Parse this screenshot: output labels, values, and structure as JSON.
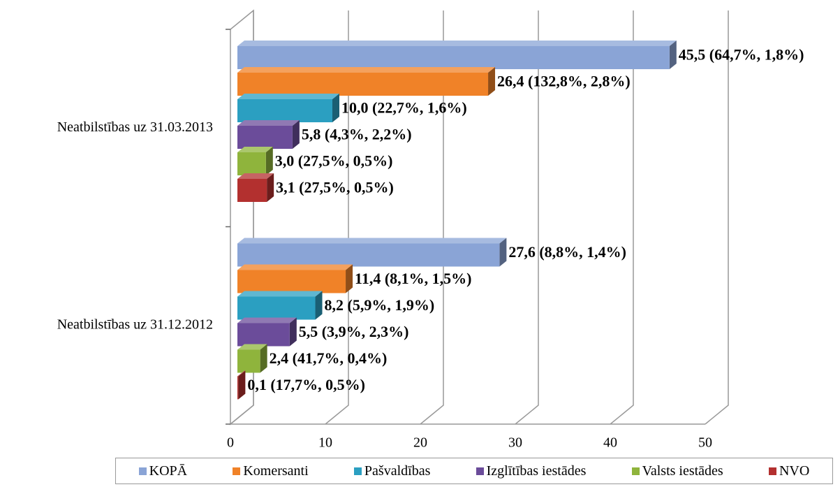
{
  "chart_data": {
    "type": "bar3d_horizontal",
    "categories": [
      "Neatbilstības uz 31.03.2013",
      "Neatbilstības uz 31.12.2012"
    ],
    "series": [
      {
        "name": "KOPĀ",
        "color": "#8aa4d6",
        "values": [
          45.5,
          27.6
        ],
        "value_labels": [
          "45,5 (64,7%, 1,8%)",
          "27,6 (8,8%, 1,4%)"
        ]
      },
      {
        "name": "Komersanti",
        "color": "#f08228",
        "values": [
          26.4,
          11.4
        ],
        "value_labels": [
          "26,4 (132,8%, 2,8%)",
          "11,4 (8,1%, 1,5%)"
        ]
      },
      {
        "name": "Pašvaldības",
        "color": "#2b9fc1",
        "values": [
          10.0,
          8.2
        ],
        "value_labels": [
          "10,0 (22,7%, 1,6%)",
          "8,2 (5,9%, 1,9%)"
        ]
      },
      {
        "name": "Izglītības iestādes",
        "color": "#6b4c9a",
        "values": [
          5.8,
          5.5
        ],
        "value_labels": [
          "5,8 (4,3%, 2,2%)",
          "5,5 (3,9%, 2,3%)"
        ]
      },
      {
        "name": "Valsts iestādes",
        "color": "#8fb43c",
        "values": [
          3.0,
          2.4
        ],
        "value_labels": [
          "3,0 (27,5%, 0,5%)",
          "2,4 (41,7%, 0,4%)"
        ]
      },
      {
        "name": "NVO",
        "color": "#b3302f",
        "values": [
          3.1,
          0.1
        ],
        "value_labels": [
          "3,1 (27,5%, 0,5%)",
          "0,1 (17,7%, 0,5%)"
        ]
      }
    ],
    "xlim": [
      0,
      50
    ],
    "xticks": [
      0,
      10,
      20,
      30,
      40,
      50
    ],
    "grid": true,
    "legend": "bottom"
  }
}
